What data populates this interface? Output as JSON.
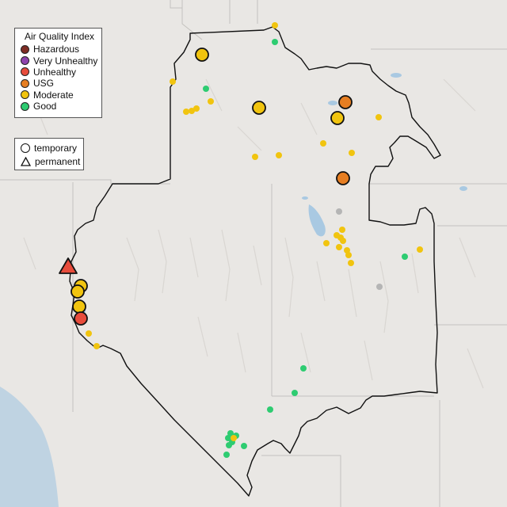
{
  "legend": {
    "title": "Air Quality Index",
    "categories": [
      {
        "label": "Hazardous",
        "color": "#7e2d24"
      },
      {
        "label": "Very Unhealthy",
        "color": "#8e44ad"
      },
      {
        "label": "Unhealthy",
        "color": "#e74c3c"
      },
      {
        "label": "USG",
        "color": "#e67e22"
      },
      {
        "label": "Moderate",
        "color": "#f1c40f"
      },
      {
        "label": "Good",
        "color": "#2ecc71"
      }
    ],
    "types": [
      {
        "label": "temporary",
        "shape": "circle"
      },
      {
        "label": "permanent",
        "shape": "triangle"
      }
    ]
  },
  "colors": {
    "Hazardous": "#7e2d24",
    "Very Unhealthy": "#8e44ad",
    "Unhealthy": "#e74c3c",
    "USG": "#e67e22",
    "Moderate": "#f1c40f",
    "Good": "#2ecc71",
    "No data": "#b5b5b5",
    "land": "#e9e7e4",
    "ocean": "#bfd3e2",
    "lake": "#a9c9e2",
    "border": "#111111"
  }
}
